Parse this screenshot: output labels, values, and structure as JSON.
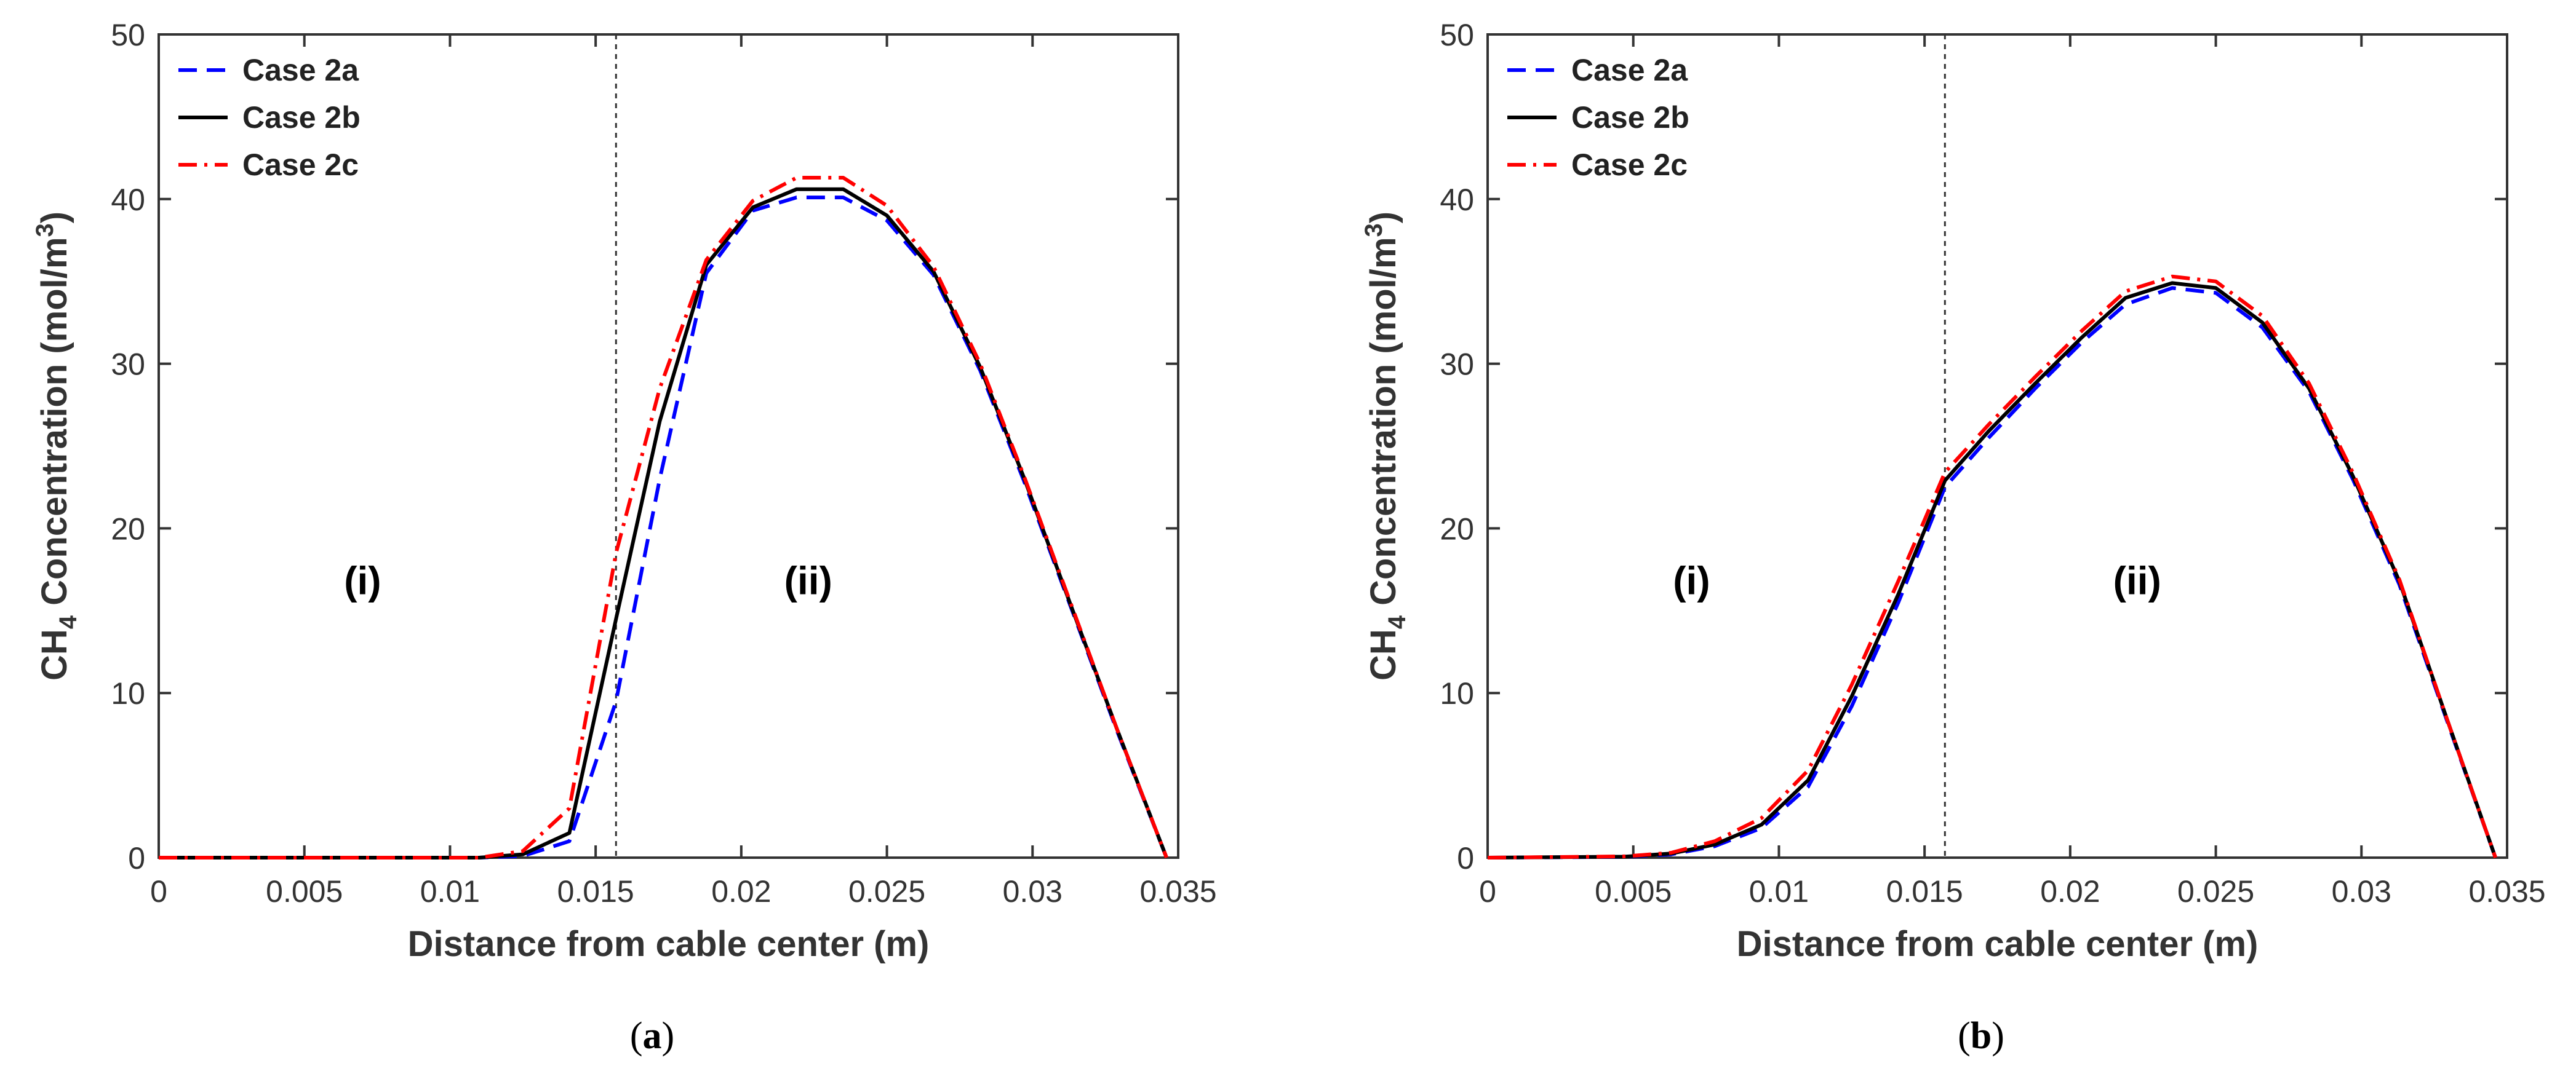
{
  "chart_data": [
    {
      "type": "line",
      "panel_label": "a",
      "xlabel": "Distance from cable center (m)",
      "ylabel": "CH4 Concentration (mol/m3)",
      "xlim": [
        0,
        0.035
      ],
      "ylim": [
        0,
        50
      ],
      "xticks": [
        "0",
        "0.005",
        "0.01",
        "0.015",
        "0.02",
        "0.025",
        "0.03",
        "0.035"
      ],
      "yticks": [
        "0",
        "10",
        "20",
        "30",
        "40",
        "50"
      ],
      "divider_x": 0.0157,
      "regions": [
        {
          "text": "(i)",
          "x": 0.007,
          "y": 16
        },
        {
          "text": "(ii)",
          "x": 0.0223,
          "y": 16
        }
      ],
      "legend_position": "top-left",
      "series": [
        {
          "name": "Case 2a",
          "color": "#0000ff",
          "style": "dashed",
          "x": [
            0,
            0.011,
            0.0125,
            0.0141,
            0.0157,
            0.0172,
            0.0188,
            0.0204,
            0.0219,
            0.0235,
            0.025,
            0.0266,
            0.0282,
            0.0297,
            0.0313,
            0.0329,
            0.0346
          ],
          "y": [
            0,
            0,
            0.1,
            1.0,
            9.5,
            23,
            35.5,
            39.3,
            40.1,
            40.1,
            38.7,
            35.4,
            29.6,
            22.9,
            15.3,
            7.7,
            0
          ]
        },
        {
          "name": "Case 2b",
          "color": "#000000",
          "style": "solid",
          "x": [
            0,
            0.011,
            0.0125,
            0.0141,
            0.0157,
            0.0172,
            0.0188,
            0.0204,
            0.0219,
            0.0235,
            0.025,
            0.0266,
            0.0282,
            0.0297,
            0.0313,
            0.0329,
            0.0346
          ],
          "y": [
            0,
            0,
            0.2,
            1.5,
            14.5,
            26.5,
            36,
            39.5,
            40.6,
            40.6,
            39,
            35.6,
            29.8,
            23.1,
            15.4,
            7.8,
            0
          ]
        },
        {
          "name": "Case 2c",
          "color": "#ff0000",
          "style": "dashdot",
          "x": [
            0,
            0.011,
            0.0125,
            0.0141,
            0.0157,
            0.0172,
            0.0188,
            0.0204,
            0.0219,
            0.0235,
            0.025,
            0.0266,
            0.0282,
            0.0297,
            0.0313,
            0.0329,
            0.0346
          ],
          "y": [
            0,
            0,
            0.4,
            3.0,
            18.5,
            28.5,
            36.3,
            39.9,
            41.3,
            41.3,
            39.6,
            35.9,
            30.0,
            23.2,
            15.5,
            7.8,
            0
          ]
        }
      ]
    },
    {
      "type": "line",
      "panel_label": "b",
      "xlabel": "Distance from cable center (m)",
      "ylabel": "CH4 Concentration (mol/m3)",
      "xlim": [
        0,
        0.035
      ],
      "ylim": [
        0,
        50
      ],
      "xticks": [
        "0",
        "0.005",
        "0.01",
        "0.015",
        "0.02",
        "0.025",
        "0.03",
        "0.035"
      ],
      "yticks": [
        "0",
        "10",
        "20",
        "30",
        "40",
        "50"
      ],
      "divider_x": 0.0157,
      "regions": [
        {
          "text": "(i)",
          "x": 0.007,
          "y": 16
        },
        {
          "text": "(ii)",
          "x": 0.0223,
          "y": 16
        }
      ],
      "legend_position": "top-left",
      "series": [
        {
          "name": "Case 2a",
          "color": "#0000ff",
          "style": "dashed",
          "x": [
            0,
            0.0047,
            0.0063,
            0.0078,
            0.0094,
            0.011,
            0.0125,
            0.0141,
            0.0157,
            0.0172,
            0.0188,
            0.0204,
            0.0219,
            0.0235,
            0.025,
            0.0266,
            0.0282,
            0.0297,
            0.0313,
            0.0329,
            0.0346
          ],
          "y": [
            0,
            0.05,
            0.2,
            0.7,
            1.8,
            4.3,
            9.2,
            15.5,
            22.5,
            25.5,
            28.5,
            31.3,
            33.6,
            34.6,
            34.3,
            32.2,
            28.3,
            23.0,
            16.6,
            8.5,
            0
          ]
        },
        {
          "name": "Case 2b",
          "color": "#000000",
          "style": "solid",
          "x": [
            0,
            0.0047,
            0.0063,
            0.0078,
            0.0094,
            0.011,
            0.0125,
            0.0141,
            0.0157,
            0.0172,
            0.0188,
            0.0204,
            0.0219,
            0.0235,
            0.025,
            0.0266,
            0.0282,
            0.0297,
            0.0313,
            0.0329,
            0.0346
          ],
          "y": [
            0,
            0.06,
            0.25,
            0.8,
            2.0,
            4.7,
            9.8,
            16.0,
            22.9,
            25.9,
            28.8,
            31.6,
            34.0,
            34.9,
            34.6,
            32.5,
            28.5,
            23.2,
            16.8,
            8.6,
            0
          ]
        },
        {
          "name": "Case 2c",
          "color": "#ff0000",
          "style": "dashdot",
          "x": [
            0,
            0.0047,
            0.0063,
            0.0078,
            0.0094,
            0.011,
            0.0125,
            0.0141,
            0.0157,
            0.0172,
            0.0188,
            0.0204,
            0.0219,
            0.0235,
            0.025,
            0.0266,
            0.0282,
            0.0297,
            0.0313,
            0.0329,
            0.0346
          ],
          "y": [
            0,
            0.08,
            0.3,
            1.0,
            2.4,
            5.3,
            10.5,
            16.8,
            23.4,
            26.3,
            29.2,
            32.0,
            34.4,
            35.3,
            35.0,
            32.9,
            28.8,
            23.4,
            16.9,
            8.6,
            0
          ]
        }
      ]
    }
  ]
}
